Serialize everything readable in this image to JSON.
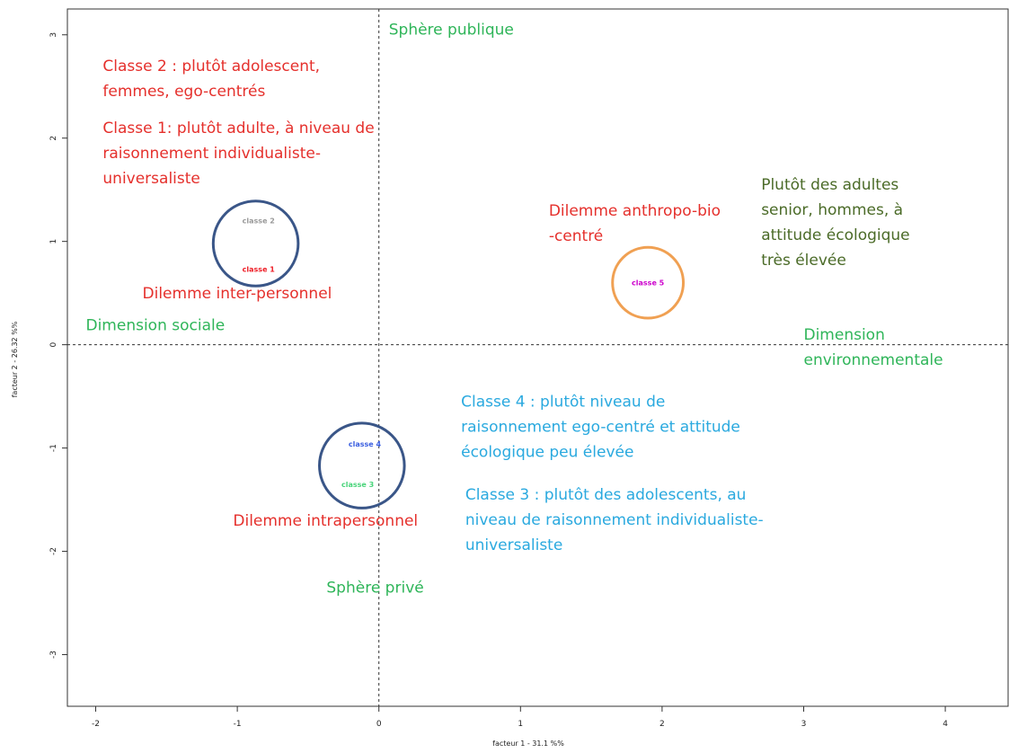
{
  "chart_data": {
    "type": "scatter",
    "title": "",
    "xlabel": "facteur 1 - 31.1 %%",
    "ylabel": "facteur 2 - 26.32 %%",
    "xlim": [
      -2.2,
      4.45
    ],
    "ylim": [
      -3.5,
      3.25
    ],
    "x_ticks": [
      -2,
      -1,
      0,
      1,
      2,
      3,
      4
    ],
    "y_ticks": [
      -3,
      -2,
      -1,
      0,
      1,
      2,
      3
    ],
    "reference_lines": {
      "x": 0,
      "y": 0,
      "style": "dashed"
    },
    "grid": false,
    "legend": "none",
    "points": [
      {
        "label": "classe 2",
        "x": -0.85,
        "y": 1.2,
        "color": "#999999"
      },
      {
        "label": "classe 1",
        "x": -0.85,
        "y": 0.73,
        "color": "#ee1c25"
      },
      {
        "label": "classe 4",
        "x": -0.1,
        "y": -0.96,
        "color": "#3b5fe0"
      },
      {
        "label": "classe 3",
        "x": -0.15,
        "y": -1.35,
        "color": "#49d47a"
      },
      {
        "label": "classe 5",
        "x": 1.9,
        "y": 0.6,
        "color": "#cc00cc"
      }
    ],
    "circles": [
      {
        "cx": -0.87,
        "cy": 0.98,
        "r": 0.3,
        "color": "#3a5688"
      },
      {
        "cx": -0.12,
        "cy": -1.17,
        "r": 0.3,
        "color": "#3a5688"
      },
      {
        "cx": 1.9,
        "cy": 0.6,
        "r": 0.25,
        "color": "#f0a052"
      }
    ],
    "annotations": [
      {
        "lines": [
          "Sphère publique"
        ],
        "x": 0.07,
        "y": 3.0,
        "color": "#2fb559"
      },
      {
        "lines": [
          "Classe 2 : plutôt adolescent,",
          "femmes, ego-centrés"
        ],
        "x": -1.95,
        "y": 2.65,
        "color": "#e5302c"
      },
      {
        "lines": [
          "Classe 1: plutôt adulte, à niveau  de",
          "raisonnement individualiste-",
          "universaliste"
        ],
        "x": -1.95,
        "y": 2.05,
        "color": "#e5302c"
      },
      {
        "lines": [
          "Plutôt des adultes",
          "senior, hommes, à",
          "attitude écologique",
          "très élevée"
        ],
        "x": 2.7,
        "y": 1.5,
        "color": "#4b6b28"
      },
      {
        "lines": [
          "Dilemme anthropo-bio",
          "-centré"
        ],
        "x": 1.2,
        "y": 1.25,
        "color": "#e5302c"
      },
      {
        "lines": [
          "Dilemme  inter-personnel"
        ],
        "x": -1.67,
        "y": 0.45,
        "color": "#e5302c"
      },
      {
        "lines": [
          "Dimension sociale"
        ],
        "x": -2.07,
        "y": 0.14,
        "color": "#2fb559"
      },
      {
        "lines": [
          "Dimension",
          "environnementale"
        ],
        "x": 3.0,
        "y": 0.05,
        "color": "#2fb559"
      },
      {
        "lines": [
          "Classe 4 : plutôt niveau de",
          "raisonnement ego-centré et attitude",
          "écologique peu élevée"
        ],
        "x": 0.58,
        "y": -0.6,
        "color": "#2aa9df"
      },
      {
        "lines": [
          "Classe 3 : plutôt des adolescents,  au",
          "niveau de raisonnement  individualiste-",
          "universaliste"
        ],
        "x": 0.61,
        "y": -1.5,
        "color": "#2aa9df"
      },
      {
        "lines": [
          "Dilemme intrapersonnel"
        ],
        "x": -1.03,
        "y": -1.75,
        "color": "#e5302c"
      },
      {
        "lines": [
          "Sphère privé"
        ],
        "x": -0.37,
        "y": -2.4,
        "color": "#2fb559"
      }
    ]
  }
}
